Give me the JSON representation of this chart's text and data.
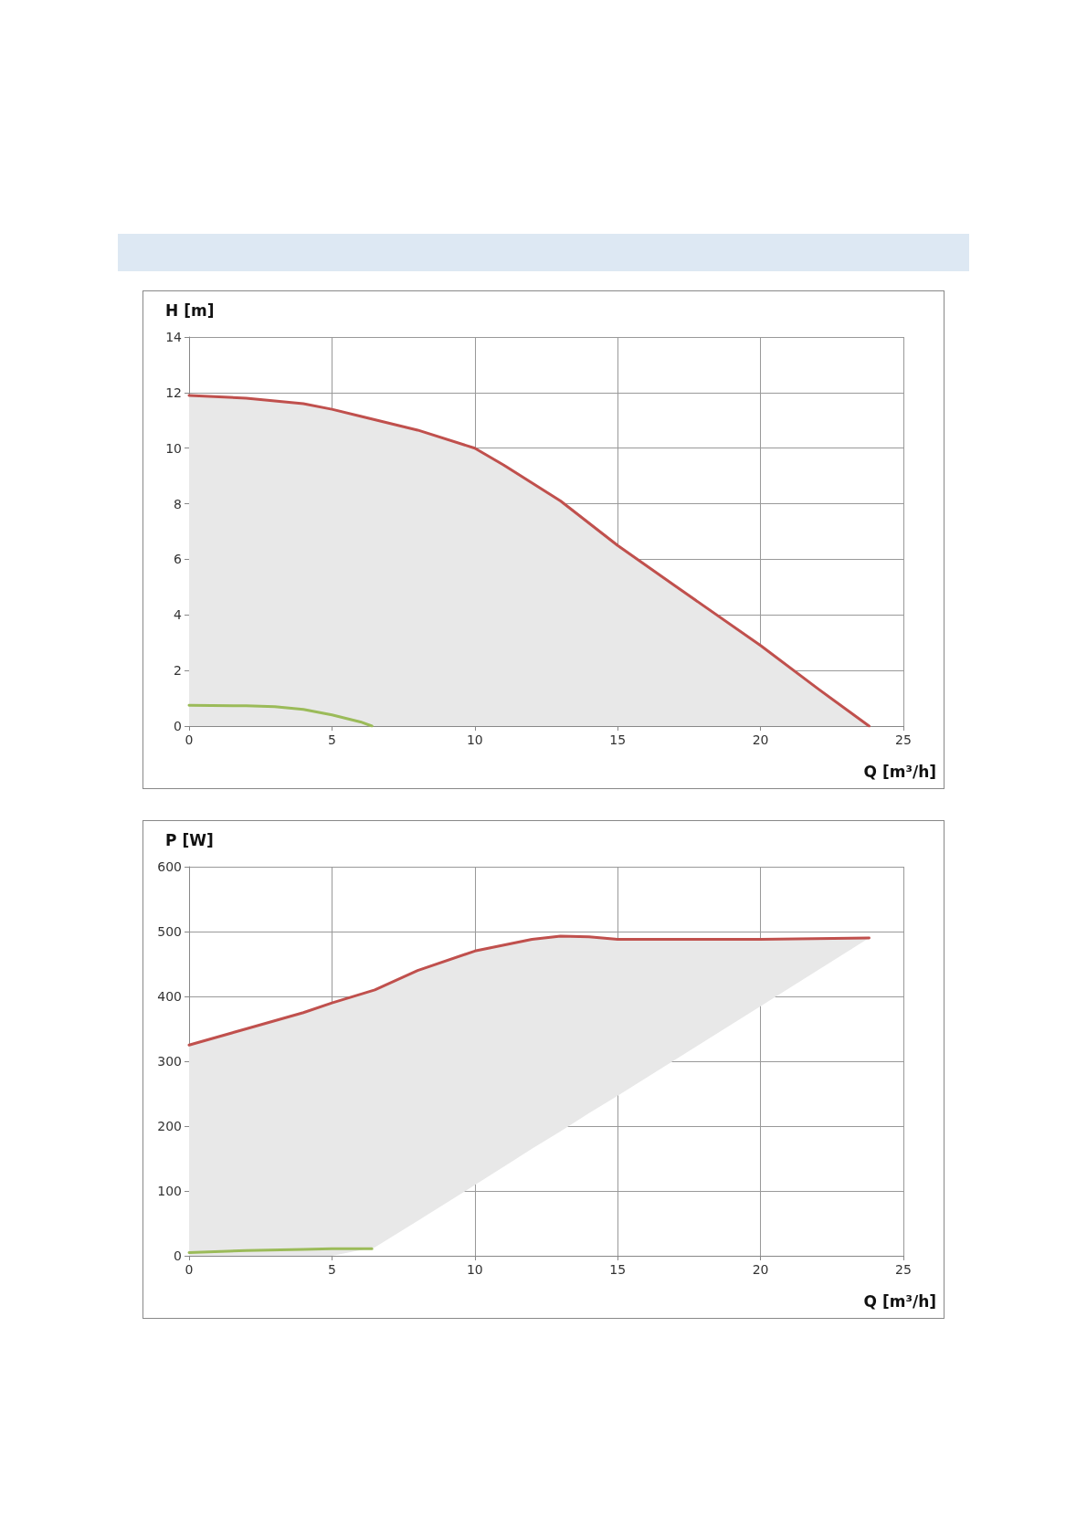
{
  "chart_data": [
    {
      "type": "area",
      "ylabel": "H [m]",
      "xlabel": "Q [m³/h]",
      "xlim": [
        0,
        25
      ],
      "xticks": [
        0,
        5,
        10,
        15,
        20,
        25
      ],
      "ylim": [
        0,
        14
      ],
      "yticks": [
        0,
        2,
        4,
        6,
        8,
        10,
        12,
        14
      ],
      "grid": true,
      "marker": "none",
      "line_style": "solid",
      "series": [
        {
          "color": "#c0504d",
          "x": [
            0,
            2,
            4,
            5,
            6,
            8,
            10,
            11,
            13,
            15,
            17,
            20,
            22,
            23.8
          ],
          "values": [
            11.9,
            11.8,
            11.6,
            11.4,
            11.15,
            10.65,
            10.0,
            9.4,
            8.1,
            6.5,
            5.05,
            2.9,
            1.35,
            0
          ]
        },
        {
          "type": "line",
          "color": "#9bbb59",
          "x": [
            0,
            2,
            3,
            4,
            5,
            6,
            6.4
          ],
          "values": [
            0.75,
            0.73,
            0.7,
            0.6,
            0.4,
            0.15,
            0
          ]
        }
      ]
    },
    {
      "type": "line",
      "ylabel": "P [W]",
      "xlabel": "Q [m³/h]",
      "xlim": [
        0,
        25
      ],
      "xticks": [
        0,
        5,
        10,
        15,
        20,
        25
      ],
      "ylim": [
        0,
        600
      ],
      "yticks": [
        0,
        100,
        200,
        300,
        400,
        500,
        600
      ],
      "grid": true,
      "marker": "none",
      "line_style": "solid",
      "series": [
        {
          "color": "#c0504d",
          "x": [
            0,
            2,
            4,
            5,
            6.5,
            8,
            10,
            12,
            13,
            14,
            15,
            20,
            23.8
          ],
          "values": [
            325,
            350,
            375,
            390,
            410,
            440,
            470,
            488,
            493,
            492,
            488,
            488,
            490
          ],
          "lower": [
            0,
            0,
            0,
            0,
            13,
            54,
            109,
            165,
            192,
            220,
            247,
            385,
            490
          ],
          "upper": [
            325,
            350,
            375,
            390,
            410,
            440,
            470,
            488,
            493,
            492,
            488,
            488,
            490
          ]
        },
        {
          "color": "#9bbb59",
          "x": [
            0,
            2,
            4,
            5,
            6.4
          ],
          "values": [
            5,
            8,
            10,
            11,
            11
          ]
        }
      ]
    }
  ]
}
